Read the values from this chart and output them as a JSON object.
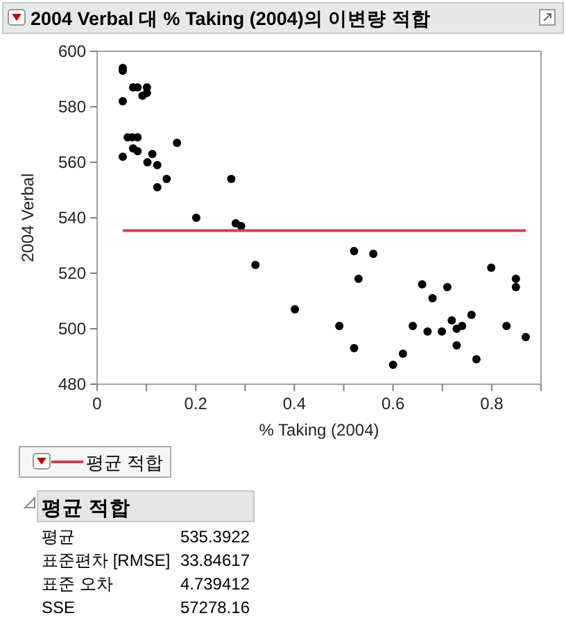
{
  "chart_data": {
    "type": "scatter",
    "title": "2004 Verbal 대 % Taking (2004)의 이변량 적합",
    "xlabel": "% Taking (2004)",
    "ylabel": "2004 Verbal",
    "xlim": [
      0,
      0.9
    ],
    "ylim": [
      480,
      600
    ],
    "xticks": [
      0,
      {
        "value": 0.1,
        "label": null
      },
      0.2,
      {
        "value": 0.3,
        "label": null
      },
      0.4,
      {
        "value": 0.5,
        "label": null
      },
      0.6,
      {
        "value": 0.7,
        "label": null
      },
      0.8,
      {
        "value": 0.9,
        "label": null
      }
    ],
    "yticks": [
      480,
      500,
      520,
      540,
      560,
      580,
      600
    ],
    "legend": "bottom left",
    "grid": false,
    "series": [
      {
        "color": "#000000",
        "marker": "circle",
        "x": [
          0.052,
          0.052,
          0.073,
          0.082,
          0.101,
          0.101,
          0.092,
          0.052,
          0.062,
          0.071,
          0.082,
          0.073,
          0.082,
          0.052,
          0.102,
          0.112,
          0.122,
          0.162,
          0.141,
          0.122,
          0.272,
          0.201,
          0.281,
          0.292,
          0.321,
          0.401,
          0.521,
          0.56,
          0.53,
          0.491,
          0.521,
          0.6,
          0.62,
          0.64,
          0.659,
          0.67,
          0.68,
          0.699,
          0.71,
          0.719,
          0.729,
          0.74,
          0.729,
          0.759,
          0.769,
          0.799,
          0.83,
          0.849,
          0.849,
          0.869
        ],
        "values": [
          594,
          593,
          587,
          587,
          587,
          585,
          584,
          582,
          569,
          569,
          569,
          565,
          564,
          562,
          560,
          563,
          559,
          567,
          554,
          551,
          554,
          540,
          538,
          537,
          523,
          507,
          528,
          527,
          518,
          501,
          493,
          487,
          491,
          501,
          516,
          499,
          511,
          499,
          515,
          503,
          500,
          501,
          494,
          505,
          489,
          522,
          501,
          518,
          515,
          497
        ]
      },
      {
        "type": "line",
        "name": "평균 적합",
        "color": "#d0404f",
        "x": [
          0.052,
          0.869
        ],
        "values": [
          535.3922,
          535.3922
        ]
      }
    ],
    "annotations": [
      "평균 적합",
      "평균",
      "535.3922",
      "표준편차 [RMSE]",
      "33.84617",
      "표준 오차",
      "4.739412",
      "SSE",
      "57278.16"
    ]
  }
}
